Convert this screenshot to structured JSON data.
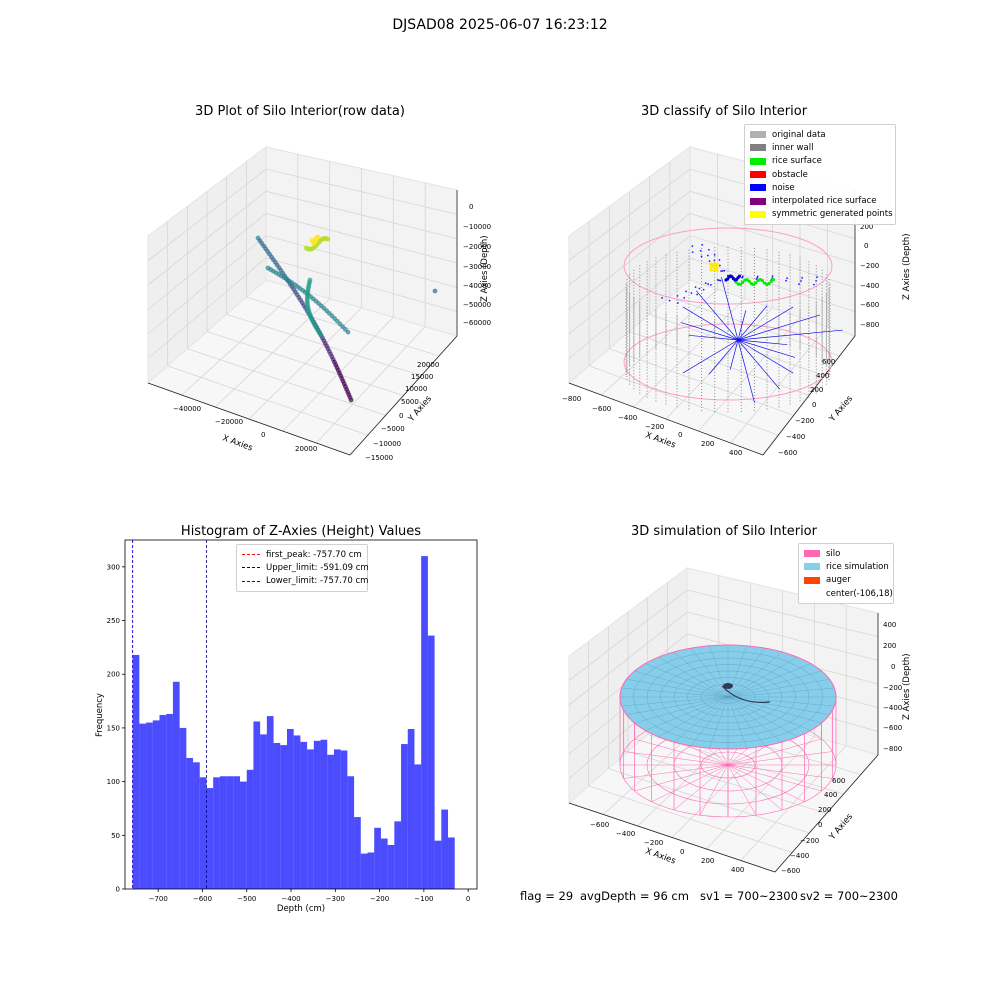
{
  "figure": {
    "suptitle": "DJSAD08 2025-06-07 16:23:12",
    "info_text": {
      "flag": "flag = 29",
      "avg_depth": "avgDepth = 96 cm",
      "sv1": "sv1 = 700~2300",
      "sv2": "sv2 = 700~2300"
    }
  },
  "chart_data": [
    {
      "type": "scatter",
      "projection": "3d",
      "title": "3D Plot of Silo Interior(row data)",
      "xlabel": "X Axies",
      "ylabel": "Y Axies",
      "zlabel": "Z Axies (Depth)",
      "x_ticks": [
        "−40000",
        "−20000",
        "0",
        "20000"
      ],
      "y_ticks": [
        "−15000",
        "−10000",
        "−5000",
        "0",
        "5000",
        "10000",
        "15000",
        "20000"
      ],
      "z_ticks": [
        "0",
        "−10000",
        "−20000",
        "−30000",
        "−40000",
        "−50000",
        "−60000"
      ],
      "colormap": "viridis",
      "grid": true
    },
    {
      "type": "scatter",
      "projection": "3d",
      "title": "3D classify of Silo Interior",
      "xlabel": "X Axies",
      "ylabel": "Y Axies",
      "zlabel": "Z Axies (Depth)",
      "x_ticks": [
        "−800",
        "−600",
        "−400",
        "−200",
        "0",
        "200",
        "400"
      ],
      "y_ticks": [
        "−600",
        "−400",
        "−200",
        "0",
        "200",
        "400",
        "600"
      ],
      "z_ticks": [
        "200",
        "0",
        "−200",
        "−400",
        "−600",
        "−800"
      ],
      "legend_position": "top-right",
      "legend": [
        {
          "label": "original data",
          "color": "#b0b0b0"
        },
        {
          "label": "inner wall",
          "color": "#808080"
        },
        {
          "label": "rice surface",
          "color": "#00ee00"
        },
        {
          "label": "obstacle",
          "color": "#ff0000"
        },
        {
          "label": "noise",
          "color": "#0000ff"
        },
        {
          "label": "interpolated rice surface",
          "color": "#800080"
        },
        {
          "label": "symmetric generated points",
          "color": "#ffff00"
        }
      ],
      "grid": true
    },
    {
      "type": "bar",
      "title": "Histogram of Z-Axies (Height) Values",
      "xlabel": "Depth (cm)",
      "ylabel": "Frequency",
      "xlim": [
        -775,
        20
      ],
      "ylim": [
        0,
        325
      ],
      "x_ticks": [
        "−700",
        "−600",
        "−500",
        "−400",
        "−300",
        "−200",
        "−100",
        "0"
      ],
      "y_ticks": [
        "0",
        "50",
        "100",
        "150",
        "200",
        "250",
        "300"
      ],
      "bin_start": -757.7,
      "bin_width": 15.154,
      "values": [
        218,
        154,
        155,
        157,
        162,
        163,
        193,
        150,
        122,
        118,
        104,
        94,
        104,
        105,
        105,
        105,
        100,
        111,
        156,
        144,
        161,
        136,
        134,
        149,
        143,
        137,
        130,
        138,
        139,
        125,
        130,
        129,
        105,
        67,
        33,
        34,
        57,
        47,
        41,
        63,
        135,
        149,
        116,
        310,
        236,
        45,
        74,
        48
      ],
      "bar_color": "#0000ff",
      "grid": false,
      "legend_position": "top-center",
      "reference_lines": [
        {
          "label": "first_peak: -757.70 cm",
          "x": -757.7,
          "color": "#ff0000"
        },
        {
          "label": "Upper_limit: -591.09 cm",
          "x": -591.09,
          "color": "#00008b"
        },
        {
          "label": "Lower_limit: -757.70 cm",
          "x": -757.7,
          "color": "#0000ff"
        }
      ]
    },
    {
      "type": "scatter",
      "projection": "3d",
      "title": "3D simulation of Silo Interior",
      "xlabel": "X Axies",
      "ylabel": "Y Axies",
      "zlabel": "Z Axies (Depth)",
      "x_ticks": [
        "−600",
        "−400",
        "−200",
        "0",
        "200",
        "400"
      ],
      "y_ticks": [
        "−600",
        "−400",
        "−200",
        "0",
        "200",
        "400",
        "600"
      ],
      "z_ticks": [
        "400",
        "200",
        "0",
        "−200",
        "−400",
        "−600",
        "−800"
      ],
      "legend_position": "top-right",
      "legend": [
        {
          "label": "silo",
          "color": "#ff69b4"
        },
        {
          "label": "rice simulation",
          "color": "#87ceeb"
        },
        {
          "label": "auger",
          "color": "#ff4500"
        },
        {
          "label": "center(-106,18)",
          "color": ""
        }
      ],
      "grid": true
    }
  ]
}
